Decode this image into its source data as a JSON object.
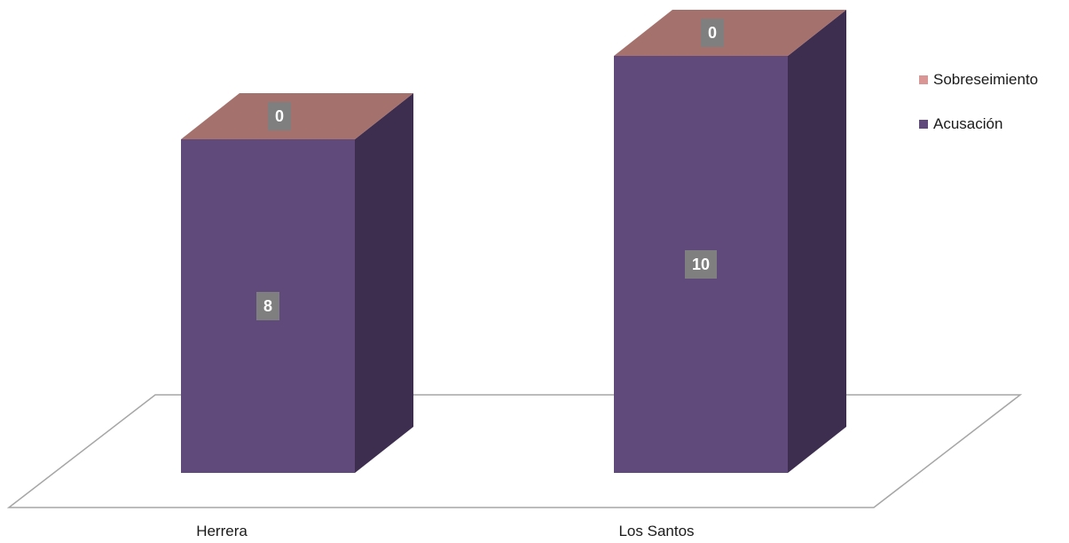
{
  "chart_data": {
    "type": "bar",
    "stacked": true,
    "three_d": true,
    "title": "",
    "xlabel": "",
    "ylabel": "",
    "categories": [
      "Herrera",
      "Los Santos"
    ],
    "series": [
      {
        "name": "Acusación",
        "values": [
          8,
          10
        ],
        "color": "#604a7b",
        "side_color": "#3d2e50"
      },
      {
        "name": "Sobreseimiento",
        "values": [
          0,
          0
        ],
        "color": "#d99694",
        "top_color": "#a5716d"
      }
    ],
    "data_labels": true,
    "grid": false,
    "legend_position": "right"
  }
}
